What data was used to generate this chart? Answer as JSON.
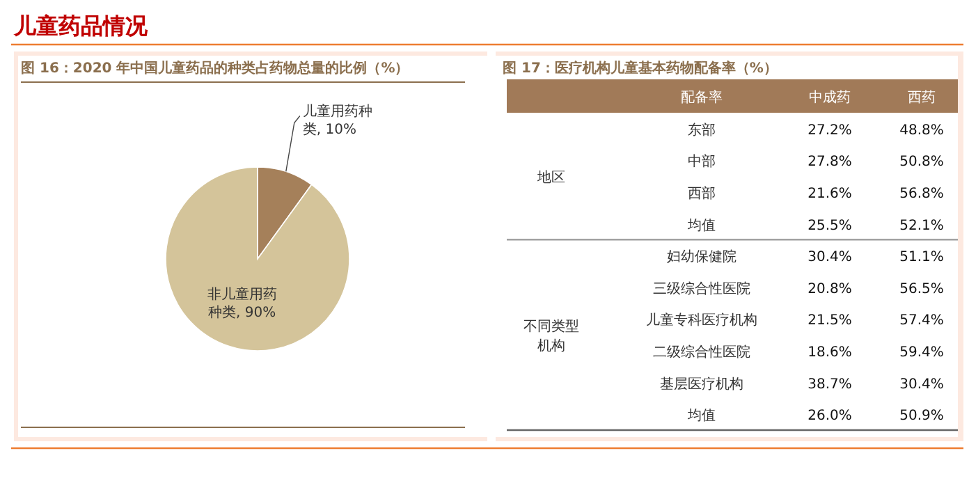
{
  "chart_data": [
    {
      "type": "pie",
      "title": "图 16：2020 年中国儿童药品的种类占药物总量的比例（%）",
      "annotations": [
        "儿童药品情况"
      ],
      "categories": [
        "儿童用药种类",
        "非儿童用药种类"
      ],
      "values": [
        10,
        90
      ],
      "colors": [
        "#a5805a",
        "#d4c49a"
      ],
      "value_labels": [
        "10%",
        "90%"
      ]
    },
    {
      "type": "other",
      "title": "图 17：医疗机构儿童基本药物配备率（%）",
      "ylabel": "配备率",
      "categories": [
        "中成药",
        "西药"
      ],
      "y_categories": [
        "东部",
        "中部",
        "西部",
        "均值",
        "妇幼保健院",
        "三级综合性医院",
        "儿童专科医疗机构",
        "二级综合性医院",
        "基层医疗机构",
        "均值"
      ],
      "y2_categories": [
        "地区",
        null,
        null,
        null,
        "不同类型机构",
        null,
        null,
        null,
        null,
        null
      ],
      "cell_labels": [
        [
          "27.2%",
          "48.8%"
        ],
        [
          "27.8%",
          "50.8%"
        ],
        [
          "21.6%",
          "56.8%"
        ],
        [
          "25.5%",
          "52.1%"
        ],
        [
          "30.4%",
          "51.1%"
        ],
        [
          "20.8%",
          "56.5%"
        ],
        [
          "21.5%",
          "57.4%"
        ],
        [
          "18.6%",
          "59.4%"
        ],
        [
          "38.7%",
          "30.4%"
        ],
        [
          "26.0%",
          "50.9%"
        ]
      ]
    }
  ]
}
